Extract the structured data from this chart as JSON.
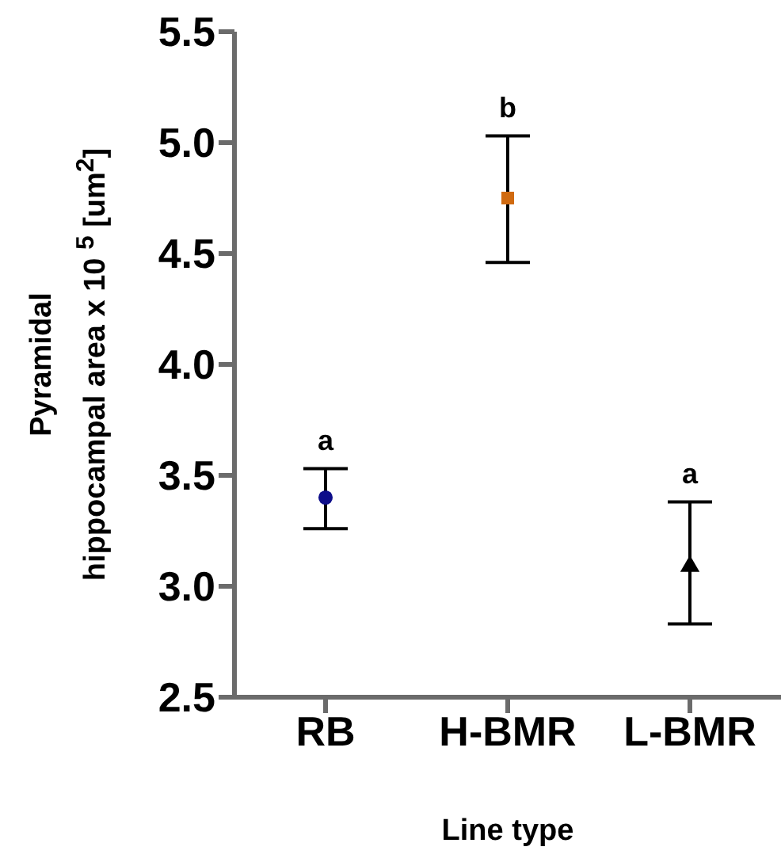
{
  "chart_data": {
    "type": "scatter",
    "xlabel": "Line type",
    "ylabel": "Pyramidal\nhippocampal area x 10 $^{5}$ [um$^{2}$]",
    "categories": [
      "RB",
      "H-BMR",
      "L-BMR"
    ],
    "series": [
      {
        "color": "#0d0d8a",
        "marker": "circle",
        "x": [
          "RB"
        ],
        "values": [
          3.4
        ],
        "errors": [
          [
            3.26,
            3.53
          ]
        ]
      },
      {
        "color": "#d06a10",
        "marker": "square",
        "x": [
          "H-BMR"
        ],
        "values": [
          4.75
        ],
        "errors": [
          [
            4.46,
            5.03
          ]
        ]
      },
      {
        "color": "#000000",
        "marker": "triangle",
        "x": [
          "L-BMR"
        ],
        "values": [
          3.09
        ],
        "errors": [
          [
            2.83,
            3.38
          ]
        ]
      }
    ],
    "ylim": [
      2.5,
      5.5
    ],
    "yticks": [
      2.5,
      {
        "value": 3,
        "label": "3.0"
      },
      3.5,
      {
        "value": 4,
        "label": "4.0"
      },
      4.5,
      {
        "value": 5,
        "label": "5.0"
      },
      5.5
    ],
    "grid": false,
    "legend": false,
    "annotations": [
      "a",
      "b",
      "a"
    ]
  }
}
